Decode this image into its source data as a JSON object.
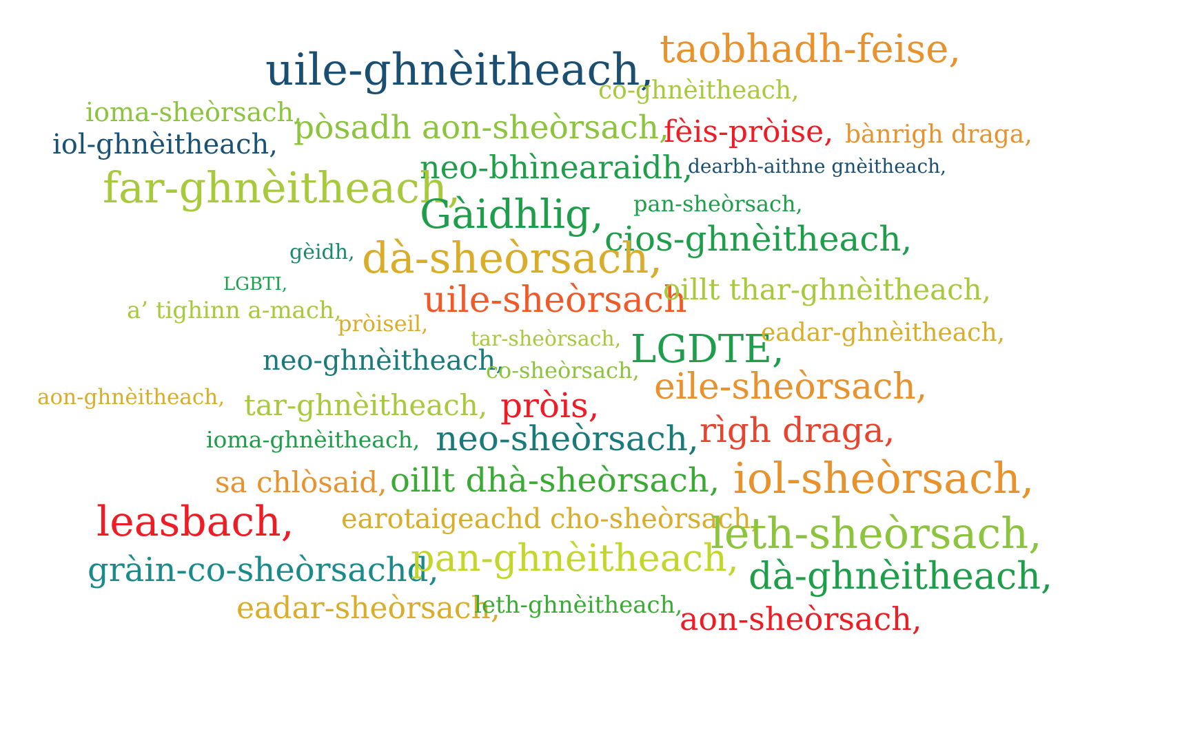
{
  "word_cloud": {
    "words": [
      {
        "text": "taobhadh-feise,",
        "color": "#e8922e"
      },
      {
        "text": "uile-ghnèitheach,",
        "color": "#1b4f72"
      },
      {
        "text": "co-ghnèitheach,",
        "color": "#a7c93b"
      },
      {
        "text": "ioma-sheòrsach,",
        "color": "#8cc43e"
      },
      {
        "text": "pòsadh aon-sheòrsach,",
        "color": "#8cc43e"
      },
      {
        "text": "fèis-pròise,",
        "color": "#ee1c25"
      },
      {
        "text": "bànrigh draga,",
        "color": "#e8922e"
      },
      {
        "text": "iol-ghnèitheach,",
        "color": "#1a5276"
      },
      {
        "text": "neo-bhìnearaidh,",
        "color": "#1e9e4a"
      },
      {
        "text": "dearbh-aithne gnèitheach,",
        "color": "#1b4f72"
      },
      {
        "text": "far-ghnèitheach,",
        "color": "#a7c93b"
      },
      {
        "text": "Gàidhlig,",
        "color": "#1e9e4a"
      },
      {
        "text": "pan-sheòrsach,",
        "color": "#1e9e4a"
      },
      {
        "text": "cios-ghnèitheach,",
        "color": "#1e9e4a"
      },
      {
        "text": "gèidh,",
        "color": "#1a8a6e"
      },
      {
        "text": "dà-sheòrsach,",
        "color": "#d9ad2a"
      },
      {
        "text": "LGBTI,",
        "color": "#1e9e4a"
      },
      {
        "text": "uile-sheòrsach",
        "color": "#f05a28"
      },
      {
        "text": "oillt thar-ghnèitheach,",
        "color": "#a7c93b"
      },
      {
        "text": "a’ tighinn a-mach,",
        "color": "#a7c93b"
      },
      {
        "text": "pròiseil,",
        "color": "#d9ad2a"
      },
      {
        "text": "tar-sheòrsach,",
        "color": "#a7c93b"
      },
      {
        "text": "LGDTE,",
        "color": "#1e9e4a"
      },
      {
        "text": "eadar-ghnèitheach,",
        "color": "#d9ad2a"
      },
      {
        "text": "neo-ghnèitheach,",
        "color": "#1a7a7a"
      },
      {
        "text": "co-sheòrsach,",
        "color": "#8cc43e"
      },
      {
        "text": "eile-sheòrsach,",
        "color": "#e8922e"
      },
      {
        "text": "aon-ghnèitheach,",
        "color": "#d9ad2a"
      },
      {
        "text": "tar-ghnèitheach,",
        "color": "#a7c93b"
      },
      {
        "text": "pròis,",
        "color": "#ee1c25"
      },
      {
        "text": "ioma-ghnèitheach,",
        "color": "#1e9e4a"
      },
      {
        "text": "neo-sheòrsach,",
        "color": "#1a7a7a"
      },
      {
        "text": "rìgh draga,",
        "color": "#e8432e"
      },
      {
        "text": "sa chlòsaid,",
        "color": "#e8922e"
      },
      {
        "text": "oillt dhà-sheòrsach,",
        "color": "#3aaa35"
      },
      {
        "text": "iol-sheòrsach,",
        "color": "#e8922e"
      },
      {
        "text": "leasbach,",
        "color": "#ee1c25"
      },
      {
        "text": "earotaigeachd cho-sheòrsach,",
        "color": "#d9ad2a"
      },
      {
        "text": "leth-sheòrsach,",
        "color": "#8cc43e"
      },
      {
        "text": "gràin-co-sheòrsachd,",
        "color": "#1a8a8a"
      },
      {
        "text": "pan-ghnèitheach,",
        "color": "#c3d62b"
      },
      {
        "text": "dà-ghnèitheach,",
        "color": "#1e9e4a"
      },
      {
        "text": "eadar-sheòrsach,",
        "color": "#d9ad2a"
      },
      {
        "text": "leth-ghnèitheach,",
        "color": "#3aaa35"
      },
      {
        "text": "aon-sheòrsach,",
        "color": "#ee1c25"
      }
    ]
  }
}
